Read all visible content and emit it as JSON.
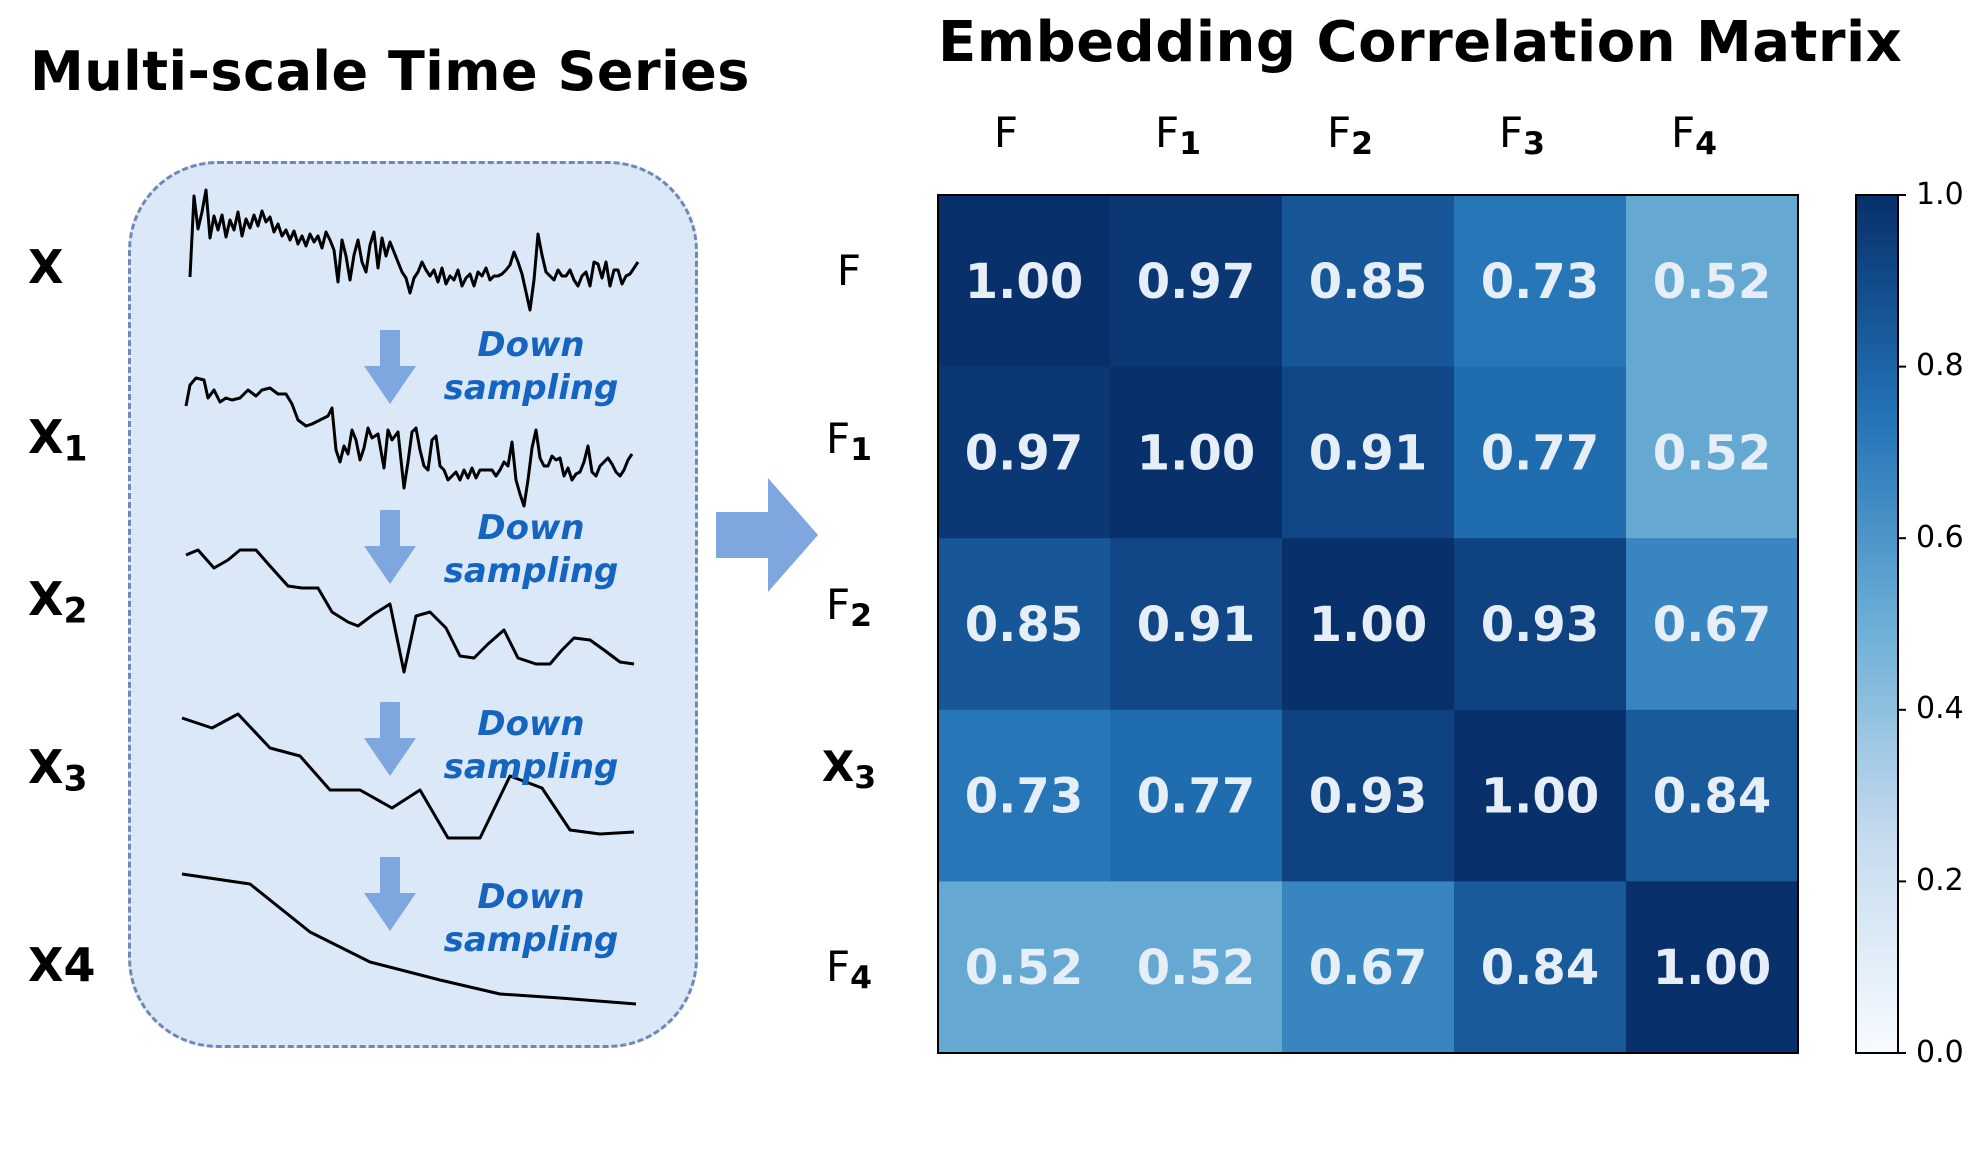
{
  "left_title": "Multi-scale Time Series",
  "right_title": "Embedding Correlation Matrix",
  "series_labels": [
    {
      "base": "X",
      "sub": ""
    },
    {
      "base": "X",
      "sub": "1"
    },
    {
      "base": "X",
      "sub": "2"
    },
    {
      "base": "X",
      "sub": "3"
    },
    {
      "base": "X4",
      "sub": ""
    }
  ],
  "downsampling_labels": [
    {
      "line1": "Down",
      "line2": "sampling"
    },
    {
      "line1": "Down",
      "line2": "sampling"
    },
    {
      "line1": "Down",
      "line2": "sampling"
    },
    {
      "line1": "Down",
      "line2": "sampling"
    }
  ],
  "colors": {
    "box_fill": "#dbe8f8",
    "box_border": "#6f88b4",
    "arrow": "#7ea6df",
    "accent_text": "#1565c0",
    "cell_text": "#e6eef8"
  },
  "chart_data": {
    "type": "heatmap",
    "title": "Embedding Correlation Matrix",
    "column_labels": [
      {
        "base": "F",
        "sub": ""
      },
      {
        "base": "F",
        "sub": "1"
      },
      {
        "base": "F",
        "sub": "2"
      },
      {
        "base": "F",
        "sub": "3"
      },
      {
        "base": "F",
        "sub": "4"
      }
    ],
    "row_labels": [
      {
        "base": "F",
        "sub": "",
        "bold": false
      },
      {
        "base": "F",
        "sub": "1",
        "bold": false
      },
      {
        "base": "F",
        "sub": "2",
        "bold": false
      },
      {
        "base": "X",
        "sub": "3",
        "bold": true
      },
      {
        "base": "F",
        "sub": "4",
        "bold": false
      }
    ],
    "values": [
      [
        1.0,
        0.97,
        0.85,
        0.73,
        0.52
      ],
      [
        0.97,
        1.0,
        0.91,
        0.77,
        0.52
      ],
      [
        0.85,
        0.91,
        1.0,
        0.93,
        0.67
      ],
      [
        0.73,
        0.77,
        0.93,
        1.0,
        0.84
      ],
      [
        0.52,
        0.52,
        0.67,
        0.84,
        1.0
      ]
    ],
    "value_labels": [
      [
        "1.00",
        "0.97",
        "0.85",
        "0.73",
        "0.52"
      ],
      [
        "0.97",
        "1.00",
        "0.91",
        "0.77",
        "0.52"
      ],
      [
        "0.85",
        "0.91",
        "1.00",
        "0.93",
        "0.67"
      ],
      [
        "0.73",
        "0.77",
        "0.93",
        "1.00",
        "0.84"
      ],
      [
        "0.52",
        "0.52",
        "0.67",
        "0.84",
        "1.00"
      ]
    ],
    "colorscale": "Blues",
    "colorbar": {
      "range": [
        0.0,
        1.0
      ],
      "ticks": [
        "0.0",
        "0.2",
        "0.4",
        "0.6",
        "0.8",
        "1.0"
      ],
      "position": "right"
    }
  }
}
